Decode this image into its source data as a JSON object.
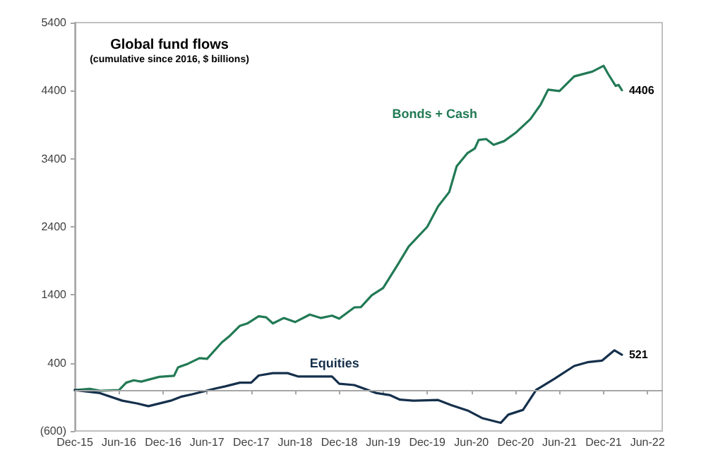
{
  "chart_data": {
    "type": "line",
    "title": "Global fund flows",
    "subtitle": "(cumulative since 2016, $ billions)",
    "xlim": [
      "2015-12",
      "2022-08"
    ],
    "xticks": [
      {
        "value": "2015-12",
        "label": "Dec-15"
      },
      {
        "value": "2016-06",
        "label": "Jun-16"
      },
      {
        "value": "2016-12",
        "label": "Dec-16"
      },
      {
        "value": "2017-06",
        "label": "Jun-17"
      },
      {
        "value": "2017-12",
        "label": "Dec-17"
      },
      {
        "value": "2018-06",
        "label": "Jun-18"
      },
      {
        "value": "2018-12",
        "label": "Dec-18"
      },
      {
        "value": "2019-06",
        "label": "Jun-19"
      },
      {
        "value": "2019-12",
        "label": "Dec-19"
      },
      {
        "value": "2020-06",
        "label": "Jun-20"
      },
      {
        "value": "2020-12",
        "label": "Dec-20"
      },
      {
        "value": "2021-06",
        "label": "Jun-21"
      },
      {
        "value": "2021-12",
        "label": "Dec-21"
      },
      {
        "value": "2022-06",
        "label": "Jun-22"
      }
    ],
    "ylim": [
      -600,
      5400
    ],
    "yticks": [
      {
        "value": -600,
        "label": "(600)"
      },
      400,
      1400,
      2400,
      3400,
      4400,
      5400
    ],
    "grid": false,
    "marker": "none",
    "line_style": "solid",
    "ref_lines": [
      {
        "axis": "y",
        "value": 0,
        "color": "#a6a6a6"
      }
    ],
    "series": [
      {
        "name": "Bonds + Cash",
        "color": "#227a55",
        "x": [
          "2015-12-01",
          "2016-02-01",
          "2016-03-15",
          "2016-06-01",
          "2016-07-01",
          "2016-08-01",
          "2016-09-01",
          "2016-11-15",
          "2017-01-15",
          "2017-02-01",
          "2017-03-15",
          "2017-05-01",
          "2017-06-01",
          "2017-08-01",
          "2017-09-01",
          "2017-10-15",
          "2017-11-15",
          "2018-01-01",
          "2018-02-01",
          "2018-03-01",
          "2018-04-15",
          "2018-06-01",
          "2018-08-01",
          "2018-09-15",
          "2018-11-01",
          "2018-12-01",
          "2019-02-01",
          "2019-03-01",
          "2019-04-15",
          "2019-06-01",
          "2019-08-01",
          "2019-09-15",
          "2019-12-01",
          "2020-01-15",
          "2020-03-01",
          "2020-04-01",
          "2020-05-15",
          "2020-06-15",
          "2020-07-01",
          "2020-08-01",
          "2020-09-01",
          "2020-10-15",
          "2020-12-01",
          "2021-02-01",
          "2021-03-15",
          "2021-04-15",
          "2021-06-01",
          "2021-08-01",
          "2021-10-15",
          "2021-12-01",
          "2021-12-20",
          "2022-01-20",
          "2022-02-01",
          "2022-02-15"
        ],
        "values": [
          0,
          20,
          -10,
          0,
          110,
          145,
          125,
          195,
          210,
          335,
          390,
          470,
          460,
          700,
          790,
          945,
          980,
          1085,
          1070,
          980,
          1060,
          1000,
          1110,
          1060,
          1095,
          1050,
          1215,
          1220,
          1395,
          1500,
          1845,
          2110,
          2400,
          2700,
          2910,
          3290,
          3480,
          3550,
          3675,
          3690,
          3605,
          3660,
          3780,
          3985,
          4195,
          4415,
          4395,
          4610,
          4680,
          4765,
          4645,
          4470,
          4485,
          4406
        ],
        "value_labels": [
          null,
          null,
          null,
          null,
          null,
          null,
          null,
          null,
          null,
          null,
          null,
          null,
          null,
          null,
          null,
          null,
          null,
          null,
          null,
          null,
          null,
          null,
          null,
          null,
          null,
          null,
          null,
          null,
          null,
          null,
          null,
          null,
          null,
          null,
          null,
          null,
          null,
          null,
          null,
          null,
          null,
          null,
          null,
          null,
          null,
          null,
          null,
          null,
          null,
          null,
          null,
          null,
          null,
          "4406"
        ]
      },
      {
        "name": "Equities",
        "color": "#15304c",
        "x": [
          "2015-12-01",
          "2016-03-10",
          "2016-06-15",
          "2016-08-15",
          "2016-10-01",
          "2017-01-01",
          "2017-02-15",
          "2017-04-01",
          "2017-07-01",
          "2017-08-15",
          "2017-10-15",
          "2017-12-01",
          "2018-01-01",
          "2018-03-01",
          "2018-05-01",
          "2018-06-15",
          "2018-11-01",
          "2018-12-01",
          "2019-02-01",
          "2019-05-01",
          "2019-07-01",
          "2019-08-10",
          "2019-10-05",
          "2020-01-15",
          "2020-03-10",
          "2020-05-20",
          "2020-07-15",
          "2020-10-01",
          "2020-11-01",
          "2021-01-01",
          "2021-02-25",
          "2021-05-10",
          "2021-08-01",
          "2021-09-25",
          "2021-11-25",
          "2022-01-15",
          "2022-02-15"
        ],
        "values": [
          0,
          -40,
          -155,
          -195,
          -235,
          -155,
          -95,
          -60,
          20,
          55,
          110,
          110,
          215,
          250,
          250,
          200,
          200,
          95,
          75,
          -40,
          -75,
          -140,
          -155,
          -145,
          -220,
          -305,
          -410,
          -480,
          -360,
          -290,
          5,
          165,
          355,
          410,
          435,
          585,
          521
        ],
        "value_labels": [
          null,
          null,
          null,
          null,
          null,
          null,
          null,
          null,
          null,
          null,
          null,
          null,
          null,
          null,
          null,
          null,
          null,
          null,
          null,
          null,
          null,
          null,
          null,
          null,
          null,
          null,
          null,
          null,
          null,
          null,
          null,
          null,
          null,
          null,
          null,
          null,
          "521"
        ]
      }
    ]
  }
}
